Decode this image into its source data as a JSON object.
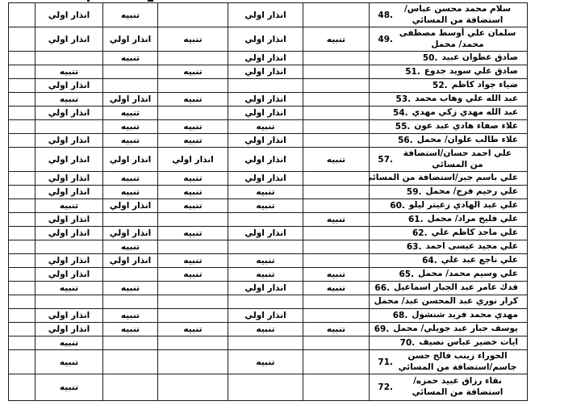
{
  "labels": {
    "warning": "انذار اولي",
    "notice": "تنبيه"
  },
  "table": {
    "rows": [
      {
        "no": "48.",
        "name": "سلام محمد محسن عباس/استضافة من المسائي",
        "two_line": true,
        "cells": [
          "انذار اولي",
          "تنبيه",
          "",
          "انذار اولي",
          ""
        ]
      },
      {
        "no": "49.",
        "name": "سلمان علي أوسط مصطفى محمد/ محمل",
        "two_line": true,
        "cells": [
          "انذار اولي",
          "انذار اولي",
          "تنبيه",
          "انذار اولي",
          "تنبيه"
        ]
      },
      {
        "no": "50.",
        "name": "صادق عطوان عبيد",
        "two_line": false,
        "cells": [
          "",
          "تنبيه",
          "",
          "انذار اولي",
          ""
        ]
      },
      {
        "no": "51.",
        "name": "صادق علي سويد جدوع",
        "two_line": false,
        "cells": [
          "تنبيه",
          "",
          "تنبيه",
          "انذار اولي",
          ""
        ]
      },
      {
        "no": "52.",
        "name": "ضياء جواد كاظم",
        "two_line": false,
        "cells": [
          "انذار اولي",
          "",
          "",
          "",
          ""
        ]
      },
      {
        "no": "53.",
        "name": "عبد الله علي وهاب محمد",
        "two_line": false,
        "cells": [
          "تنبيه",
          "انذار اولي",
          "تنبيه",
          "انذار اولي",
          ""
        ]
      },
      {
        "no": "54.",
        "name": "عبد الله مهدي زكي مهدي",
        "two_line": false,
        "cells": [
          "انذار اولي",
          "تنبيه",
          "",
          "انذار اولي",
          ""
        ]
      },
      {
        "no": "55.",
        "name": "علاء صفاء هادي عبد عون",
        "two_line": false,
        "cells": [
          "",
          "تنبيه",
          "تنبيه",
          "تنبيه",
          ""
        ]
      },
      {
        "no": "56.",
        "name": "علاء طالب علوان/ محمل",
        "two_line": false,
        "cells": [
          "انذار اولي",
          "تنبيه",
          "تنبيه",
          "انذار اولي",
          ""
        ]
      },
      {
        "no": "57.",
        "name": "علي احمد حسان/استضافة من المسائي",
        "two_line": true,
        "cells": [
          "انذار اولي",
          "انذار اولي",
          "انذار اولي",
          "انذار اولي",
          "تنبيه"
        ]
      },
      {
        "no": "58.",
        "name": "علي باسم جبر/استضافة من المسائي",
        "two_line": false,
        "cells": [
          "انذار اولي",
          "تنبيه",
          "تنبيه",
          "انذار اولي",
          ""
        ]
      },
      {
        "no": "59.",
        "name": "علي رحيم فرج/ محمل",
        "two_line": false,
        "cells": [
          "انذار اولي",
          "تنبيه",
          "تنبيه",
          "تنبيه",
          ""
        ]
      },
      {
        "no": "60.",
        "name": "علي عبد الهادي زعيتر ليلو",
        "two_line": false,
        "cells": [
          "تنبيه",
          "انذار اولي",
          "تنبيه",
          "تنبيه",
          ""
        ]
      },
      {
        "no": "61.",
        "name": "علي فليح مراد/ محمل",
        "two_line": false,
        "cells": [
          "انذار اولي",
          "",
          "",
          "",
          "تنبيه"
        ]
      },
      {
        "no": "62.",
        "name": "علي ماجد كاظم علي",
        "two_line": false,
        "cells": [
          "انذار اولي",
          "انذار اولي",
          "تنبيه",
          "انذار اولي",
          ""
        ]
      },
      {
        "no": "63.",
        "name": "علي مجيد عيسى احمد",
        "two_line": false,
        "cells": [
          "",
          "تنبيه",
          "",
          "",
          ""
        ]
      },
      {
        "no": "64.",
        "name": "علي ناجع عبد علي",
        "two_line": false,
        "cells": [
          "انذار اولي",
          "انذار اولي",
          "تنبيه",
          "تنبيه",
          ""
        ]
      },
      {
        "no": "65.",
        "name": "علي وسيم محمد/ محمل",
        "two_line": false,
        "cells": [
          "انذار اولي",
          "",
          "تنبيه",
          "تنبيه",
          "تنبيه"
        ]
      },
      {
        "no": "66.",
        "name": "فدك عامر عبد الجبار اسماعيل",
        "two_line": false,
        "cells": [
          "تنبيه",
          "تنبيه",
          "",
          "انذار اولي",
          "تنبيه"
        ]
      },
      {
        "no": "67.",
        "name": "كرار نوري عبد المحسن عبد/ محمل",
        "two_line": false,
        "cells": [
          "",
          "",
          "",
          "",
          ""
        ]
      },
      {
        "no": "68.",
        "name": "مهدي محمد فريد شنشول",
        "two_line": false,
        "cells": [
          "انذار اولي",
          "تنبيه",
          "",
          "انذار اولي",
          ""
        ]
      },
      {
        "no": "69.",
        "name": "يوسف جبار عبد جويلي/ محمل",
        "two_line": false,
        "cells": [
          "انذار اولي",
          "تنبيه",
          "تنبيه",
          "تنبيه",
          "تنبيه"
        ]
      },
      {
        "no": "70.",
        "name": "ايات خضير عباس نصيف",
        "two_line": false,
        "cells": [
          "تنبيه",
          "",
          "",
          "",
          ""
        ]
      },
      {
        "no": "71.",
        "name": "الحوراء زينب فالح حسن جاسم/استضافة من المسائي",
        "two_line": true,
        "cells": [
          "تنبيه",
          "",
          "",
          "تنبيه",
          ""
        ]
      },
      {
        "no": "72.",
        "name": "نقاء رزاق عبيد حمزه/استضافة من المسائي",
        "two_line": true,
        "cells": [
          "تنبيه",
          "",
          "",
          "",
          ""
        ]
      }
    ]
  }
}
